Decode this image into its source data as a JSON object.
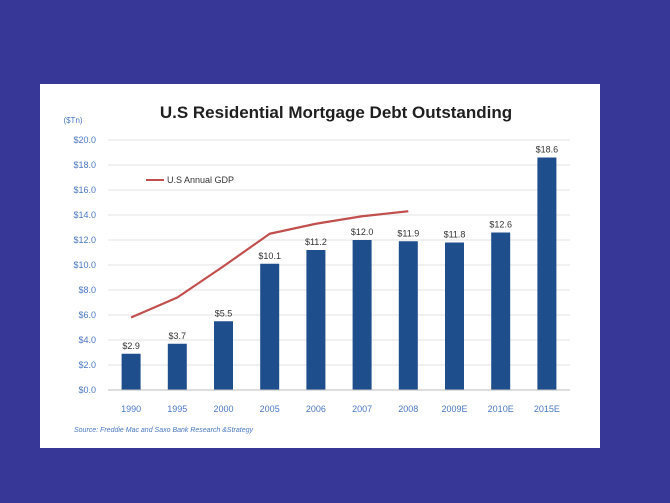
{
  "colors": {
    "background": "#363796",
    "bar": "#1f4e8c",
    "gdp_line": "#c0504d",
    "axis_text": "#4a78c2"
  },
  "chart_data": {
    "type": "bar",
    "title": "U.S Residential Mortgage Debt Outstanding",
    "unit_label": "($Tn)",
    "categories": [
      "1990",
      "1995",
      "2000",
      "2005",
      "2006",
      "2007",
      "2008",
      "2009E",
      "2010E",
      "2015E"
    ],
    "series": [
      {
        "values": [
          2.9,
          3.7,
          5.5,
          10.1,
          11.2,
          12.0,
          11.9,
          11.8,
          12.6,
          18.6
        ],
        "data_labels": [
          "$2.9",
          "$3.7",
          "$5.5",
          "$10.1",
          "$11.2",
          "$12.0",
          "$11.9",
          "$11.8",
          "$12.6",
          "$18.6"
        ]
      },
      {
        "name": "U.S Annual GDP",
        "type": "line",
        "values": [
          5.8,
          7.4,
          9.9,
          12.5,
          13.3,
          13.9,
          14.3,
          null,
          null,
          null
        ]
      }
    ],
    "ylim": [
      0,
      20
    ],
    "yticks": [
      "$0.0",
      "$2.0",
      "$4.0",
      "$6.0",
      "$8.0",
      "$10.0",
      "$12.0",
      "$14.0",
      "$16.0",
      "$18.0",
      "$20.0"
    ],
    "grid": true,
    "legend_position": "top-left",
    "source": "Source: Freddie Mac and Saxo Bank Research &Strategy"
  }
}
